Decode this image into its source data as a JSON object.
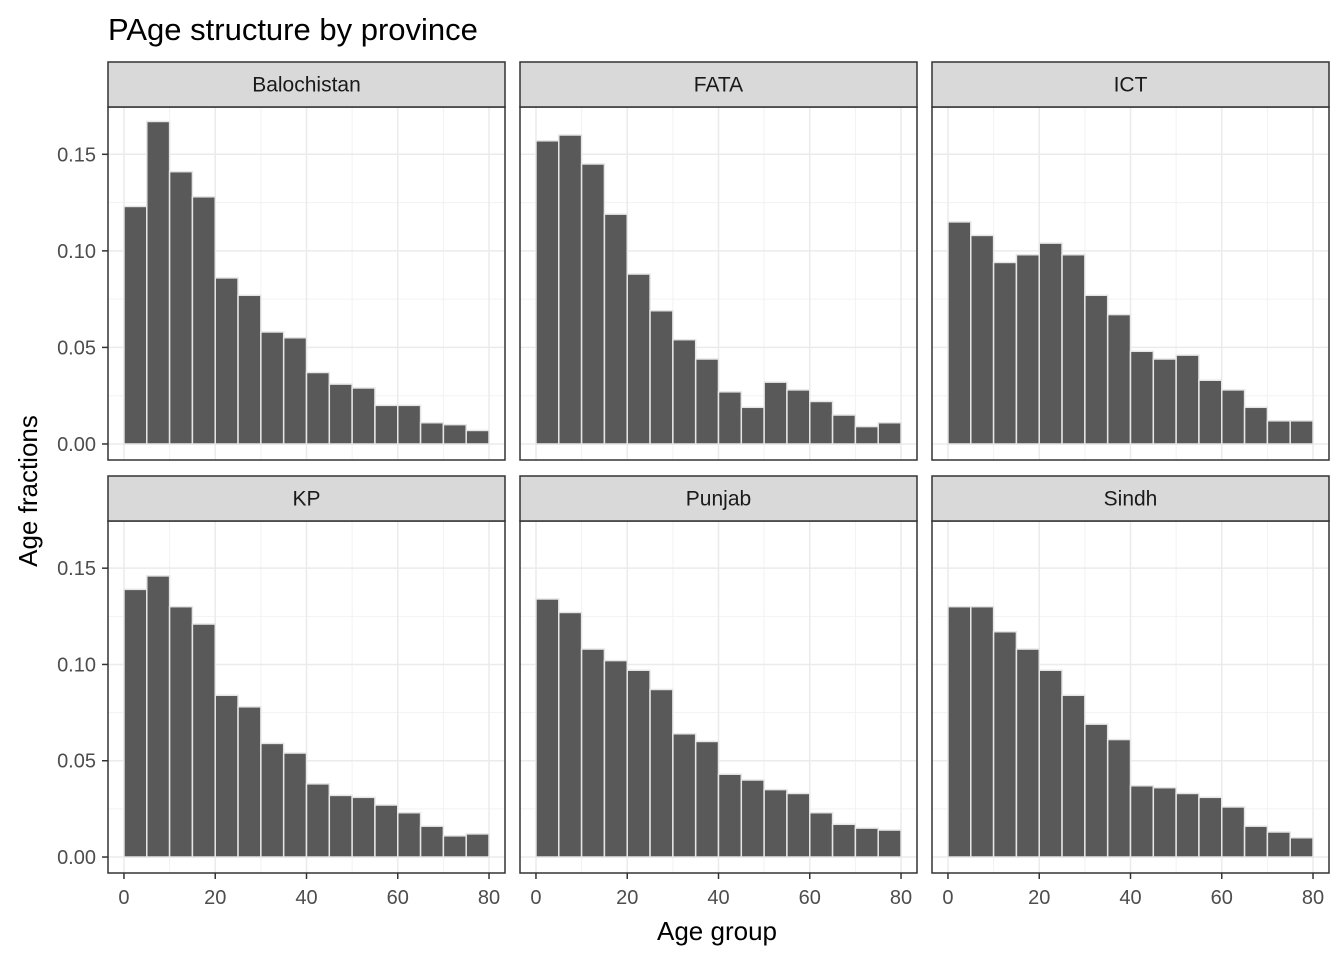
{
  "chart_data": {
    "type": "bar",
    "title": "PAge structure by province",
    "xlabel": "Age group",
    "ylabel": "Age fractions",
    "x_ticks": [
      0,
      20,
      40,
      60,
      80
    ],
    "y_ticks": [
      0.0,
      0.05,
      0.1,
      0.15
    ],
    "y_tick_labels": [
      "0.00",
      "0.05",
      "0.10",
      "0.15"
    ],
    "xlim": [
      -3.5,
      83.5
    ],
    "ylim": [
      -0.0083,
      0.1745
    ],
    "bin_width": 5,
    "x": [
      2.5,
      7.5,
      12.5,
      17.5,
      22.5,
      27.5,
      32.5,
      37.5,
      42.5,
      47.5,
      52.5,
      57.5,
      62.5,
      67.5,
      72.5,
      77.5
    ],
    "grid": true,
    "bar_fill": "#595959",
    "bar_outline": "#e6e6e6",
    "facets": [
      {
        "name": "Balochistan",
        "values": [
          0.123,
          0.167,
          0.141,
          0.128,
          0.086,
          0.077,
          0.058,
          0.055,
          0.037,
          0.031,
          0.029,
          0.02,
          0.02,
          0.011,
          0.01,
          0.007
        ]
      },
      {
        "name": "FATA",
        "values": [
          0.157,
          0.16,
          0.145,
          0.119,
          0.088,
          0.069,
          0.054,
          0.044,
          0.027,
          0.019,
          0.032,
          0.028,
          0.022,
          0.015,
          0.009,
          0.011
        ]
      },
      {
        "name": "ICT",
        "values": [
          0.115,
          0.108,
          0.094,
          0.098,
          0.104,
          0.098,
          0.077,
          0.067,
          0.048,
          0.044,
          0.046,
          0.033,
          0.028,
          0.019,
          0.012,
          0.012
        ]
      },
      {
        "name": "KP",
        "values": [
          0.139,
          0.146,
          0.13,
          0.121,
          0.084,
          0.078,
          0.059,
          0.054,
          0.038,
          0.032,
          0.031,
          0.027,
          0.023,
          0.016,
          0.011,
          0.012
        ]
      },
      {
        "name": "Punjab",
        "values": [
          0.134,
          0.127,
          0.108,
          0.102,
          0.097,
          0.087,
          0.064,
          0.06,
          0.043,
          0.04,
          0.035,
          0.033,
          0.023,
          0.017,
          0.015,
          0.014
        ]
      },
      {
        "name": "Sindh",
        "values": [
          0.13,
          0.13,
          0.117,
          0.108,
          0.097,
          0.084,
          0.069,
          0.061,
          0.037,
          0.036,
          0.033,
          0.031,
          0.026,
          0.016,
          0.013,
          0.01
        ]
      }
    ]
  }
}
